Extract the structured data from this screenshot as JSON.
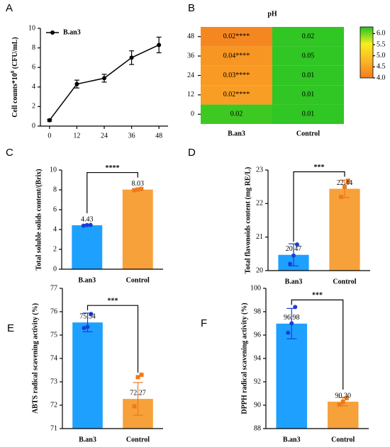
{
  "chart_data": [
    {
      "type": "line",
      "panel_label": "A",
      "y_label": [
        "Cell counts*10",
        "8",
        " (CFU/mL)"
      ],
      "x": [
        0,
        12,
        24,
        36,
        48
      ],
      "xlim": [
        -4,
        52
      ],
      "xticks": [
        0,
        12,
        24,
        36,
        48
      ],
      "ylim": [
        0,
        10
      ],
      "yticks": [
        0,
        2,
        4,
        6,
        8,
        10
      ],
      "series": [
        {
          "name": "B.an3",
          "color": "#000000",
          "values": [
            0.6,
            4.3,
            4.9,
            7.0,
            8.3
          ],
          "errors": [
            0.1,
            0.4,
            0.4,
            0.7,
            0.8
          ]
        }
      ],
      "legend": "upper left"
    },
    {
      "type": "heatmap",
      "panel_label": "B",
      "title": "pH",
      "rows": [
        "48",
        "36",
        "24",
        "12",
        "0"
      ],
      "columns": [
        "B.an3",
        "Control"
      ],
      "values": [
        [
          4.15,
          6.25
        ],
        [
          4.35,
          6.25
        ],
        [
          4.4,
          6.25
        ],
        [
          4.45,
          6.25
        ],
        [
          6.2,
          6.25
        ]
      ],
      "cell_labels": [
        [
          "0.02****",
          "0.02"
        ],
        [
          "0.04****",
          "0.05"
        ],
        [
          "0.03****",
          "0.01"
        ],
        [
          "0.02****",
          "0.01"
        ],
        [
          "0.02",
          "0.01"
        ]
      ],
      "clim": [
        4.0,
        6.3
      ],
      "colormap": [
        "#f47c20",
        "#fbb626",
        "#f6ef1d",
        "#22c323"
      ],
      "colorbar_ticks": [
        {
          "value": 4.0,
          "label": "4.0"
        },
        4.5,
        {
          "value": 5.0,
          "label": "5.0"
        },
        5.5,
        {
          "value": 6.0,
          "label": "6.0"
        }
      ]
    },
    {
      "type": "bar",
      "panel_label": "C",
      "y_label": "Total soluble solids content/(Brix)",
      "categories": [
        "B.an3",
        "Control"
      ],
      "values": [
        4.43,
        8.03
      ],
      "errors": [
        0.08,
        0.1
      ],
      "points": [
        [
          4.38,
          4.45,
          4.46
        ],
        [
          7.97,
          8.03,
          8.1
        ]
      ],
      "colors": [
        "#1ea0ff",
        "#f7a13a"
      ],
      "point_colors": [
        "#1b3fd6",
        "#f07a1a"
      ],
      "significance": "****",
      "ylim": [
        0,
        10
      ],
      "yticks": [
        0,
        2,
        4,
        6,
        8,
        10
      ]
    },
    {
      "type": "bar",
      "panel_label": "D",
      "y_label": "Total flavonoids content (mg RE/L)",
      "categories": [
        "B.an3",
        "Control"
      ],
      "values": [
        20.47,
        22.44
      ],
      "errors": [
        0.33,
        0.26
      ],
      "points": [
        [
          20.2,
          20.45,
          20.78
        ],
        [
          22.2,
          22.5,
          22.68
        ]
      ],
      "colors": [
        "#1ea0ff",
        "#f7a13a"
      ],
      "point_colors": [
        "#1b3fd6",
        "#f07a1a"
      ],
      "significance": "***",
      "ylim": [
        20,
        23
      ],
      "yticks": [
        20,
        21,
        22,
        23
      ]
    },
    {
      "type": "bar",
      "panel_label": "E",
      "y_label": "ABTS  radical scavening activity (%)",
      "categories": [
        "B.an3",
        "Control"
      ],
      "values": [
        75.54,
        72.27
      ],
      "errors": [
        0.4,
        0.7
      ],
      "points": [
        [
          75.3,
          75.35,
          75.9
        ],
        [
          71.95,
          73.2,
          73.3
        ]
      ],
      "colors": [
        "#1ea0ff",
        "#f7a13a"
      ],
      "point_colors": [
        "#1b3fd6",
        "#f07a1a"
      ],
      "significance": "***",
      "ylim": [
        71,
        77
      ],
      "yticks": [
        71,
        72,
        73,
        74,
        75,
        76,
        77
      ]
    },
    {
      "type": "bar",
      "panel_label": "F",
      "y_label": "DPPH  radical scavening activity (%)",
      "categories": [
        "B.an3",
        "Control"
      ],
      "values": [
        96.98,
        90.3
      ],
      "value_labels": [
        "96.98",
        "90.30"
      ],
      "errors": [
        1.3,
        0.35
      ],
      "points": [
        [
          96.2,
          97.0,
          98.4
        ],
        [
          90.05,
          90.3,
          90.6
        ]
      ],
      "colors": [
        "#1ea0ff",
        "#f7a13a"
      ],
      "point_colors": [
        "#1b3fd6",
        "#f07a1a"
      ],
      "significance": "***",
      "ylim": [
        88,
        100
      ],
      "yticks": [
        88,
        90,
        92,
        94,
        96,
        98,
        100
      ]
    }
  ]
}
